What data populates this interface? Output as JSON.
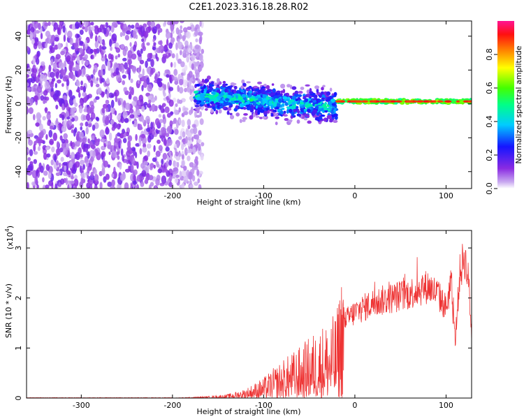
{
  "title": "C2E1.2023.316.18.28.R02",
  "chart_data": [
    {
      "type": "heatmap",
      "xlabel": "Height of straight line (km)",
      "ylabel": "Frequency (Hz)",
      "xlim": [
        -360,
        128
      ],
      "ylim": [
        -50,
        49
      ],
      "xticks": [
        -300,
        -200,
        -100,
        0,
        100
      ],
      "yticks": [
        -40,
        -20,
        0,
        20,
        40
      ],
      "colorbar": {
        "label": "Normalized spectral amplitude",
        "range": [
          0,
          1
        ],
        "ticks": [
          0.0,
          0.2,
          0.4,
          0.6,
          0.8
        ],
        "tick_labels": [
          "0.0",
          "0.2",
          "0.4",
          "0.6",
          "0.8"
        ]
      },
      "features": {
        "noise_region_x": [
          -360,
          -175
        ],
        "broadband_band_x": [
          -175,
          -20
        ],
        "broadband_band_freq_center_hz": [
          5,
          -2
        ],
        "narrow_line_x": [
          -20,
          128
        ],
        "narrow_line_freq_hz": 1.5,
        "narrow_line_amplitude": 0.9
      }
    },
    {
      "type": "line",
      "xlabel": "Height of straight line (km)",
      "ylabel": "SNR (10 * v/v)",
      "yscale_label": "(x10",
      "yscale_exp": "4",
      "xlim": [
        -360,
        128
      ],
      "ylim": [
        0,
        3.35
      ],
      "xticks": [
        -300,
        -200,
        -100,
        0,
        100
      ],
      "yticks": [
        0,
        1,
        2,
        3
      ],
      "color": "#ee3333",
      "envelope_x": [
        -360,
        -200,
        -160,
        -140,
        -120,
        -100,
        -80,
        -60,
        -40,
        -20,
        -12,
        0,
        20,
        40,
        60,
        80,
        90,
        100,
        105,
        110,
        115,
        120,
        125,
        128
      ],
      "envelope_y": [
        0.0,
        0.0,
        0.02,
        0.04,
        0.1,
        0.22,
        0.4,
        0.55,
        0.75,
        0.9,
        1.6,
        1.8,
        2.0,
        2.1,
        2.2,
        2.35,
        2.2,
        1.9,
        2.4,
        1.2,
        2.6,
        3.0,
        2.4,
        1.3
      ]
    }
  ]
}
